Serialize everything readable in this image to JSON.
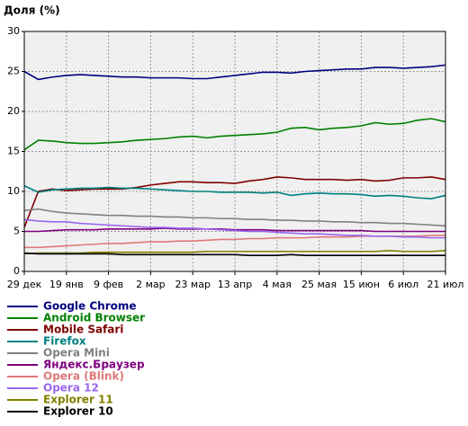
{
  "chart_data": {
    "type": "line",
    "title": "Доля (%)",
    "categories": [
      "29 дек",
      null,
      null,
      "19 янв",
      null,
      null,
      "9 фев",
      null,
      null,
      "2 мар",
      null,
      null,
      "23 мар",
      null,
      null,
      "13 апр",
      null,
      null,
      "4 мая",
      null,
      null,
      "25 мая",
      null,
      null,
      "15 июн",
      null,
      null,
      "6 июл",
      null,
      null,
      "21 июл"
    ],
    "ylim": [
      0,
      30
    ],
    "yticks": [
      0,
      5,
      10,
      15,
      20,
      25,
      30
    ],
    "grid": true,
    "series": [
      {
        "name": "Google Chrome",
        "color": "#000080",
        "values": [
          25,
          24,
          24.3,
          24.5,
          24.6,
          24.5,
          24.4,
          24.3,
          24.3,
          24.2,
          24.2,
          24.2,
          24.1,
          24.1,
          24.3,
          24.5,
          24.7,
          24.9,
          24.9,
          24.8,
          25.0,
          25.1,
          25.2,
          25.3,
          25.3,
          25.5,
          25.5,
          25.4,
          25.5,
          25.6,
          25.8
        ]
      },
      {
        "name": "Android Browser",
        "color": "#008000",
        "values": [
          15.2,
          16.4,
          16.3,
          16.1,
          16.0,
          16.0,
          16.1,
          16.2,
          16.4,
          16.5,
          16.6,
          16.8,
          16.9,
          16.7,
          16.9,
          17.0,
          17.1,
          17.2,
          17.4,
          17.9,
          18.0,
          17.7,
          17.9,
          18.0,
          18.2,
          18.6,
          18.4,
          18.5,
          18.9,
          19.1,
          18.7
        ]
      },
      {
        "name": "Mobile Safari",
        "color": "#800000",
        "values": [
          5.5,
          10.0,
          10.3,
          10.1,
          10.2,
          10.3,
          10.3,
          10.3,
          10.5,
          10.8,
          11.0,
          11.2,
          11.2,
          11.1,
          11.1,
          11.0,
          11.3,
          11.5,
          11.8,
          11.7,
          11.5,
          11.5,
          11.5,
          11.4,
          11.5,
          11.3,
          11.4,
          11.7,
          11.7,
          11.8,
          11.5
        ]
      },
      {
        "name": "Firefox",
        "color": "#008080",
        "values": [
          10.7,
          9.9,
          10.2,
          10.3,
          10.4,
          10.4,
          10.5,
          10.4,
          10.4,
          10.3,
          10.2,
          10.1,
          10.0,
          10.0,
          9.9,
          9.9,
          9.9,
          9.8,
          9.9,
          9.5,
          9.7,
          9.8,
          9.7,
          9.7,
          9.6,
          9.4,
          9.5,
          9.4,
          9.2,
          9.1,
          9.5
        ]
      },
      {
        "name": "Opera Mini",
        "color": "#808080",
        "values": [
          7.6,
          7.8,
          7.5,
          7.3,
          7.2,
          7.1,
          7.0,
          7.0,
          6.9,
          6.9,
          6.8,
          6.8,
          6.7,
          6.7,
          6.6,
          6.6,
          6.5,
          6.5,
          6.4,
          6.4,
          6.3,
          6.3,
          6.2,
          6.2,
          6.1,
          6.1,
          6.0,
          6.0,
          5.9,
          5.8,
          5.7
        ]
      },
      {
        "name": "Яндекс.Браузер",
        "color": "#800080",
        "values": [
          5.0,
          5.0,
          5.1,
          5.2,
          5.2,
          5.2,
          5.3,
          5.3,
          5.3,
          5.3,
          5.4,
          5.3,
          5.3,
          5.3,
          5.3,
          5.2,
          5.2,
          5.2,
          5.1,
          5.1,
          5.1,
          5.1,
          5.1,
          5.1,
          5.1,
          5.0,
          5.0,
          5.0,
          5.0,
          5.0,
          5.0
        ]
      },
      {
        "name": "Opera (Blink)",
        "color": "#e07878",
        "values": [
          3.0,
          3.0,
          3.1,
          3.2,
          3.3,
          3.4,
          3.5,
          3.5,
          3.6,
          3.7,
          3.7,
          3.8,
          3.8,
          3.9,
          4.0,
          4.0,
          4.1,
          4.1,
          4.2,
          4.2,
          4.2,
          4.3,
          4.3,
          4.3,
          4.4,
          4.4,
          4.4,
          4.4,
          4.4,
          4.5,
          4.5
        ]
      },
      {
        "name": "Opera 12",
        "color": "#9966ee",
        "values": [
          6.5,
          6.3,
          6.2,
          6.2,
          6.0,
          5.9,
          5.8,
          5.7,
          5.6,
          5.5,
          5.5,
          5.4,
          5.4,
          5.3,
          5.2,
          5.1,
          5.0,
          5.0,
          4.9,
          4.8,
          4.7,
          4.7,
          4.6,
          4.5,
          4.5,
          4.4,
          4.4,
          4.3,
          4.3,
          4.2,
          4.2
        ]
      },
      {
        "name": "Explorer 11",
        "color": "#808000",
        "values": [
          2.2,
          2.3,
          2.3,
          2.3,
          2.3,
          2.4,
          2.4,
          2.4,
          2.4,
          2.4,
          2.4,
          2.4,
          2.4,
          2.5,
          2.5,
          2.5,
          2.5,
          2.5,
          2.5,
          2.5,
          2.5,
          2.5,
          2.5,
          2.5,
          2.5,
          2.5,
          2.6,
          2.5,
          2.5,
          2.5,
          2.6
        ]
      },
      {
        "name": "Explorer 10",
        "color": "#000000",
        "values": [
          2.3,
          2.2,
          2.2,
          2.2,
          2.2,
          2.2,
          2.2,
          2.1,
          2.1,
          2.1,
          2.1,
          2.1,
          2.1,
          2.1,
          2.1,
          2.1,
          2.0,
          2.0,
          2.0,
          2.1,
          2.0,
          2.0,
          2.0,
          2.0,
          2.0,
          2.0,
          2.0,
          2.0,
          2.0,
          2.0,
          2.0
        ]
      }
    ]
  }
}
